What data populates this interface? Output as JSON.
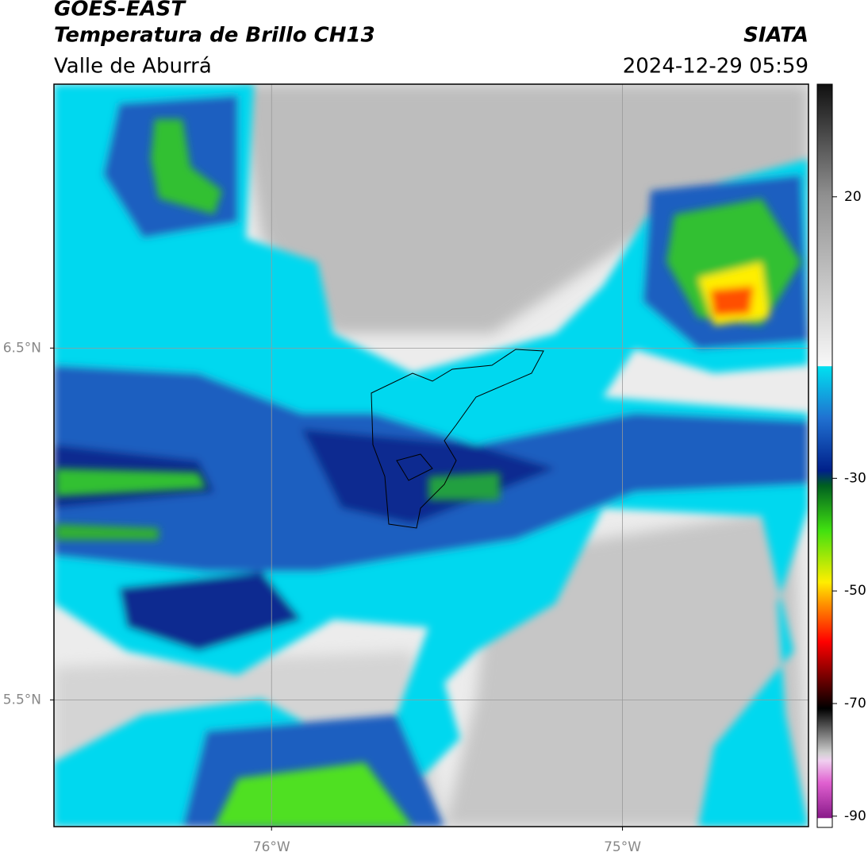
{
  "header": {
    "satellite": "GOES-EAST",
    "product": "Temperatura de Brillo CH13",
    "agency": "SIATA",
    "region": "Valle de Aburrá",
    "datetime": "2024-12-29 05:59"
  },
  "map": {
    "xlim": [
      -76.62,
      -74.47
    ],
    "ylim": [
      5.14,
      7.25
    ],
    "xticks": [
      {
        "value": -76,
        "label": "76°W"
      },
      {
        "value": -75,
        "label": "75°W"
      }
    ],
    "yticks": [
      {
        "value": 6.5,
        "label": "6.5°N"
      },
      {
        "value": 5.5,
        "label": "5.5°N"
      }
    ],
    "grid": true
  },
  "colorbar": {
    "lim": [
      -92,
      40
    ],
    "ticks": [
      20,
      -30,
      -50,
      -70,
      -90
    ]
  }
}
